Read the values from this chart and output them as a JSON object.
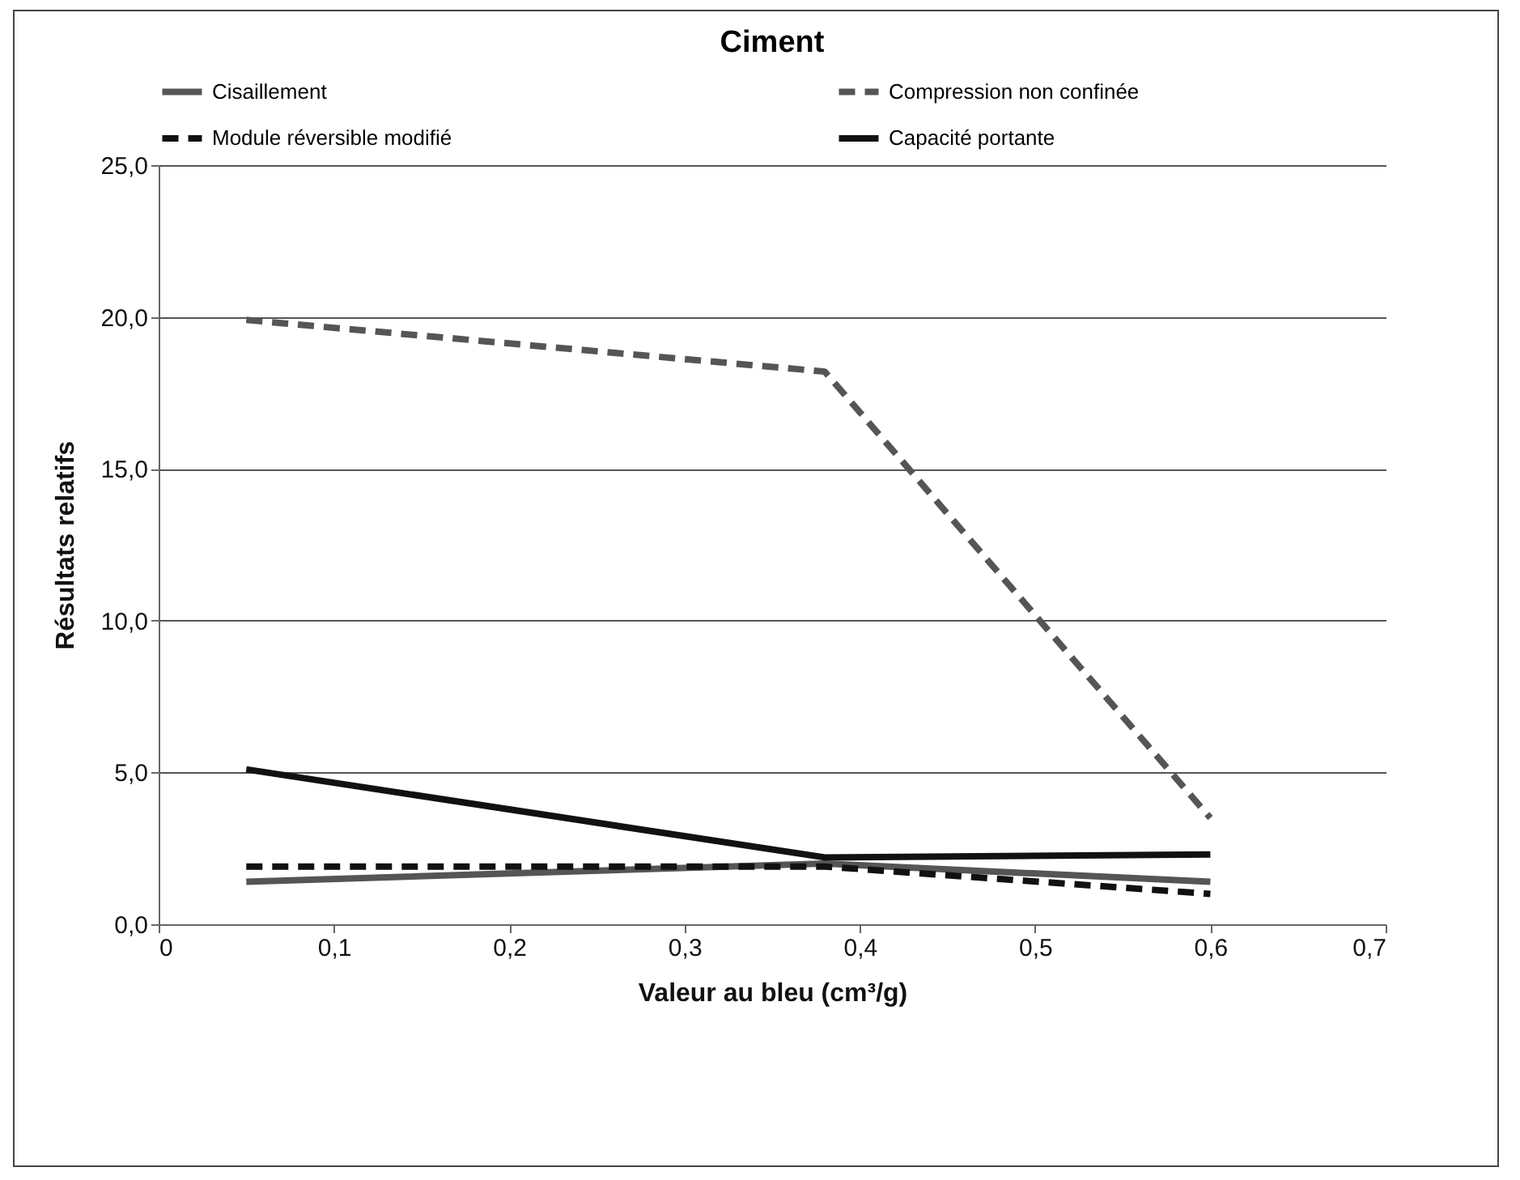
{
  "chart_data": {
    "type": "line",
    "title": "Ciment",
    "xlabel": "Valeur au bleu (cm³/g)",
    "ylabel": "Résultats relatifs",
    "x": [
      0.05,
      0.38,
      0.6
    ],
    "series": [
      {
        "name": "Cisaillement",
        "color": "#555555",
        "line_style": "solid",
        "values": [
          1.4,
          2.0,
          1.4
        ]
      },
      {
        "name": "Compression non confinée",
        "color": "#555555",
        "line_style": "dashed",
        "values": [
          19.9,
          18.2,
          3.5
        ]
      },
      {
        "name": "Module réversible modifié",
        "color": "#111111",
        "line_style": "dashed",
        "values": [
          1.9,
          1.9,
          1.0
        ]
      },
      {
        "name": "Capacité portante",
        "color": "#111111",
        "line_style": "solid",
        "values": [
          5.1,
          2.2,
          2.3
        ]
      }
    ],
    "xlim": [
      0,
      0.7
    ],
    "xticks": [
      {
        "value": 0,
        "label": "0"
      },
      {
        "value": 0.1,
        "label": "0,1"
      },
      {
        "value": 0.2,
        "label": "0,2"
      },
      {
        "value": 0.3,
        "label": "0,3"
      },
      {
        "value": 0.4,
        "label": "0,4"
      },
      {
        "value": 0.5,
        "label": "0,5"
      },
      {
        "value": 0.6,
        "label": "0,6"
      },
      {
        "value": 0.7,
        "label": "0,7"
      }
    ],
    "ylim": [
      0,
      25
    ],
    "yticks": [
      {
        "value": 0,
        "label": "0,0"
      },
      {
        "value": 5,
        "label": "5,0"
      },
      {
        "value": 10,
        "label": "10,0"
      },
      {
        "value": 15,
        "label": "15,0"
      },
      {
        "value": 20,
        "label": "20,0"
      },
      {
        "value": 25,
        "label": "25,0"
      }
    ],
    "grid": "y",
    "legend": "top",
    "marker": "none"
  }
}
